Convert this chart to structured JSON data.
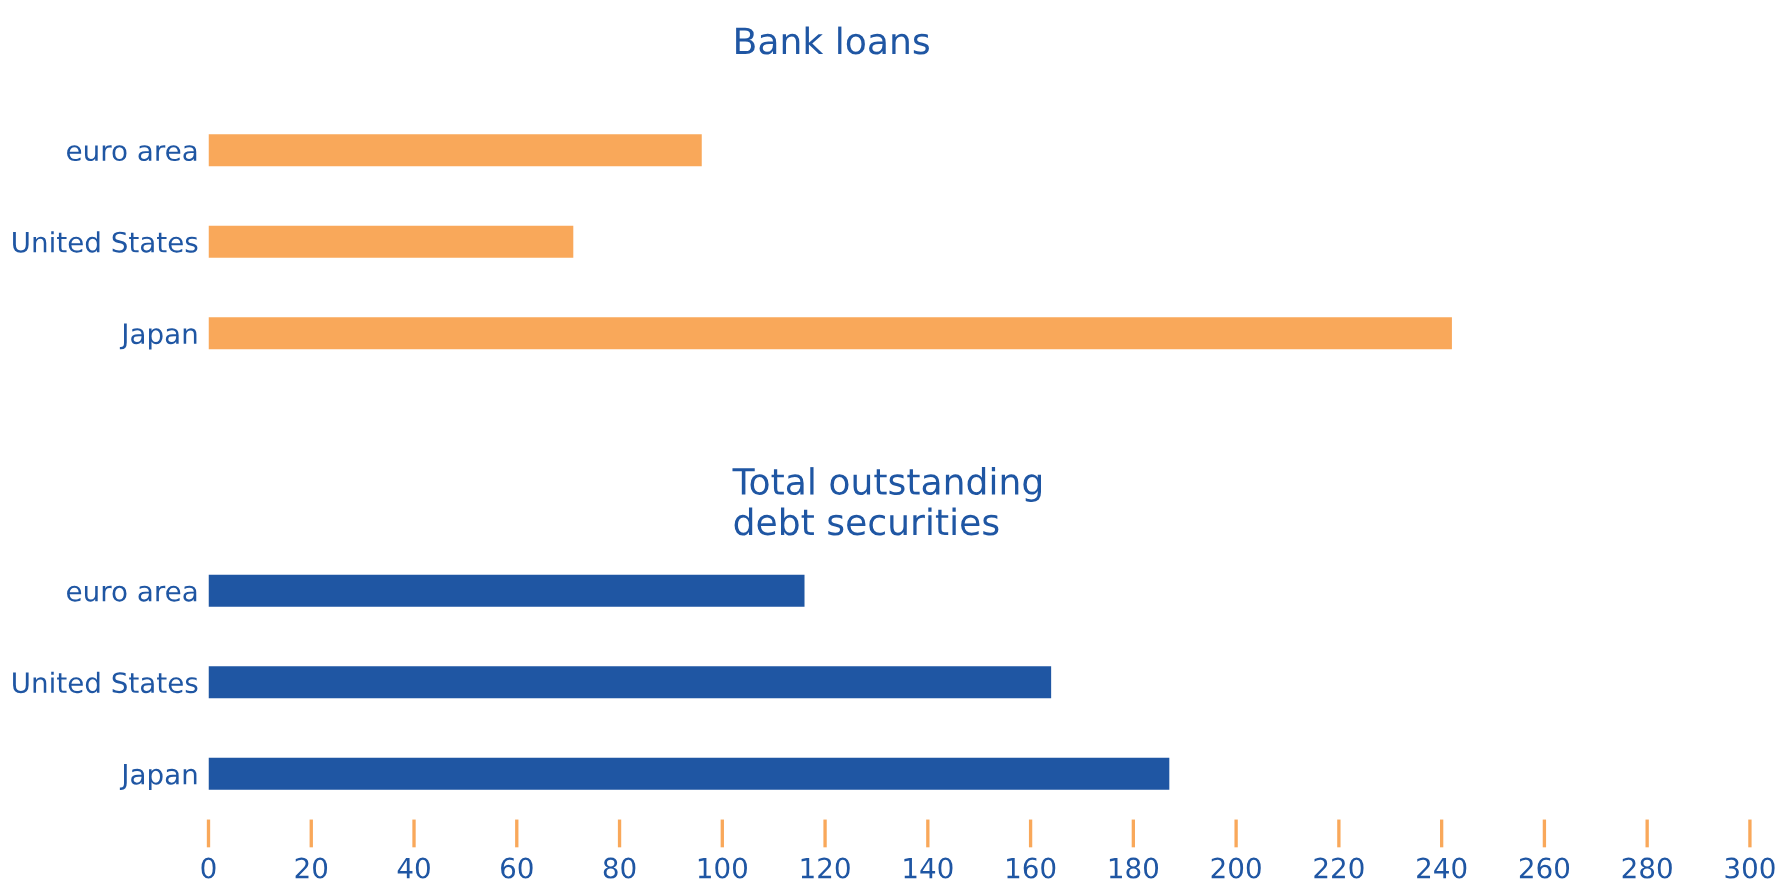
{
  "chart_data": [
    {
      "type": "bar",
      "orientation": "horizontal",
      "categories": [
        "euro area",
        "United States",
        "Japan"
      ],
      "values": [
        96,
        71,
        242
      ],
      "color": "#f9a85a",
      "annotations": [
        "Bank loans"
      ],
      "xlim": [
        0,
        300
      ],
      "tick_labels": "y",
      "grid": false
    },
    {
      "type": "bar",
      "orientation": "horizontal",
      "categories": [
        "euro area",
        "United States",
        "Japan"
      ],
      "values": [
        116,
        164,
        187
      ],
      "color": "#1f56a3",
      "annotations": [
        "Total outstanding\ndebt securities"
      ],
      "xlim": [
        0,
        300
      ],
      "xticks": [
        0,
        20,
        40,
        60,
        80,
        100,
        120,
        140,
        160,
        180,
        200,
        220,
        240,
        260,
        280,
        300
      ],
      "grid": false
    }
  ]
}
